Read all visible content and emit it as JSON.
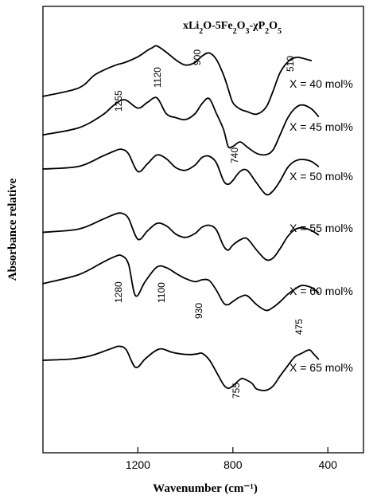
{
  "chart_data": {
    "type": "line",
    "title_parts": [
      {
        "text": "xLi",
        "sub": false
      },
      {
        "text": "2",
        "sub": true
      },
      {
        "text": "O-5Fe",
        "sub": false
      },
      {
        "text": "2",
        "sub": true
      },
      {
        "text": "O",
        "sub": false
      },
      {
        "text": "3",
        "sub": true
      },
      {
        "text": "-χP",
        "sub": false
      },
      {
        "text": "2",
        "sub": true
      },
      {
        "text": "O",
        "sub": false
      },
      {
        "text": "5",
        "sub": true
      }
    ],
    "xlabel": "Wavenumber (cm⁻¹)",
    "ylabel": "Absorbance relative",
    "xlim": [
      1600,
      250
    ],
    "x_reversed": true,
    "x_ticks": [
      1200,
      800,
      400
    ],
    "x_tick_labels": [
      "1200",
      "800",
      "400"
    ],
    "y_ticks": false,
    "grid": false,
    "series": [
      {
        "name": "X = 40 mol%",
        "points": [
          [
            1600,
            84
          ],
          [
            1450,
            97
          ],
          [
            1380,
            118
          ],
          [
            1300,
            132
          ],
          [
            1255,
            137
          ],
          [
            1200,
            146
          ],
          [
            1160,
            156
          ],
          [
            1140,
            160
          ],
          [
            1120,
            163
          ],
          [
            1080,
            153
          ],
          [
            1040,
            141
          ],
          [
            1000,
            133
          ],
          [
            960,
            137
          ],
          [
            930,
            147
          ],
          [
            900,
            152
          ],
          [
            870,
            142
          ],
          [
            840,
            118
          ],
          [
            820,
            96
          ],
          [
            800,
            74
          ],
          [
            770,
            64
          ],
          [
            740,
            60
          ],
          [
            700,
            56
          ],
          [
            660,
            67
          ],
          [
            630,
            93
          ],
          [
            600,
            122
          ],
          [
            560,
            141
          ],
          [
            530,
            145
          ],
          [
            510,
            144
          ],
          [
            470,
            140
          ]
        ]
      },
      {
        "name": "X = 45 mol%",
        "points": [
          [
            1600,
            71
          ],
          [
            1450,
            82
          ],
          [
            1350,
            102
          ],
          [
            1300,
            118
          ],
          [
            1255,
            126
          ],
          [
            1200,
            113
          ],
          [
            1160,
            122
          ],
          [
            1120,
            129
          ],
          [
            1080,
            104
          ],
          [
            1040,
            98
          ],
          [
            1000,
            95
          ],
          [
            960,
            104
          ],
          [
            930,
            120
          ],
          [
            900,
            128
          ],
          [
            870,
            105
          ],
          [
            840,
            80
          ],
          [
            820,
            53
          ],
          [
            800,
            53
          ],
          [
            770,
            60
          ],
          [
            740,
            52
          ],
          [
            700,
            42
          ],
          [
            660,
            40
          ],
          [
            630,
            48
          ],
          [
            600,
            72
          ],
          [
            570,
            97
          ],
          [
            540,
            112
          ],
          [
            510,
            118
          ],
          [
            470,
            112
          ],
          [
            440,
            100
          ]
        ]
      },
      {
        "name": "X = 50 mol%",
        "points": [
          [
            1600,
            60
          ],
          [
            1450,
            64
          ],
          [
            1350,
            80
          ],
          [
            1300,
            88
          ],
          [
            1270,
            91
          ],
          [
            1240,
            84
          ],
          [
            1200,
            56
          ],
          [
            1160,
            68
          ],
          [
            1120,
            82
          ],
          [
            1080,
            76
          ],
          [
            1040,
            62
          ],
          [
            1000,
            58
          ],
          [
            960,
            66
          ],
          [
            930,
            78
          ],
          [
            900,
            80
          ],
          [
            870,
            70
          ],
          [
            840,
            42
          ],
          [
            820,
            36
          ],
          [
            800,
            42
          ],
          [
            770,
            56
          ],
          [
            740,
            58
          ],
          [
            700,
            38
          ],
          [
            660,
            20
          ],
          [
            630,
            26
          ],
          [
            600,
            42
          ],
          [
            570,
            62
          ],
          [
            540,
            72
          ],
          [
            510,
            75
          ],
          [
            470,
            72
          ],
          [
            440,
            64
          ]
        ]
      },
      {
        "name": "X = 55 mol%",
        "points": [
          [
            1600,
            42
          ],
          [
            1450,
            47
          ],
          [
            1350,
            62
          ],
          [
            1300,
            70
          ],
          [
            1270,
            72
          ],
          [
            1240,
            64
          ],
          [
            1200,
            31
          ],
          [
            1160,
            44
          ],
          [
            1120,
            56
          ],
          [
            1080,
            52
          ],
          [
            1040,
            39
          ],
          [
            1000,
            34
          ],
          [
            960,
            40
          ],
          [
            930,
            50
          ],
          [
            900,
            53
          ],
          [
            870,
            46
          ],
          [
            840,
            21
          ],
          [
            820,
            14
          ],
          [
            800,
            22
          ],
          [
            770,
            30
          ],
          [
            740,
            32
          ],
          [
            700,
            14
          ],
          [
            660,
            -1
          ],
          [
            630,
            2
          ],
          [
            600,
            17
          ],
          [
            570,
            35
          ],
          [
            540,
            46
          ],
          [
            510,
            49
          ],
          [
            470,
            45
          ],
          [
            440,
            38
          ]
        ]
      },
      {
        "name": "X = 60 mol%",
        "points": [
          [
            1600,
            24
          ],
          [
            1450,
            38
          ],
          [
            1350,
            57
          ],
          [
            1300,
            66
          ],
          [
            1270,
            68
          ],
          [
            1240,
            55
          ],
          [
            1210,
            5
          ],
          [
            1170,
            27
          ],
          [
            1120,
            50
          ],
          [
            1080,
            49
          ],
          [
            1040,
            40
          ],
          [
            1000,
            32
          ],
          [
            960,
            27
          ],
          [
            930,
            30
          ],
          [
            900,
            29
          ],
          [
            870,
            14
          ],
          [
            840,
            -6
          ],
          [
            820,
            -9
          ],
          [
            800,
            -4
          ],
          [
            770,
            3
          ],
          [
            740,
            5
          ],
          [
            700,
            -9
          ],
          [
            660,
            -18
          ],
          [
            630,
            -13
          ],
          [
            600,
            -4
          ],
          [
            570,
            7
          ],
          [
            540,
            15
          ],
          [
            510,
            21
          ],
          [
            470,
            18
          ],
          [
            440,
            10
          ]
        ]
      },
      {
        "name": "X = 65 mol%",
        "points": [
          [
            1600,
            0
          ],
          [
            1480,
            2
          ],
          [
            1400,
            7
          ],
          [
            1330,
            16
          ],
          [
            1300,
            20
          ],
          [
            1280,
            22
          ],
          [
            1250,
            17
          ],
          [
            1210,
            -11
          ],
          [
            1170,
            2
          ],
          [
            1130,
            14
          ],
          [
            1100,
            18
          ],
          [
            1060,
            13
          ],
          [
            1020,
            10
          ],
          [
            980,
            9
          ],
          [
            950,
            10
          ],
          [
            930,
            11
          ],
          [
            900,
            1
          ],
          [
            870,
            -18
          ],
          [
            840,
            -38
          ],
          [
            820,
            -44
          ],
          [
            800,
            -40
          ],
          [
            770,
            -30
          ],
          [
            755,
            -29
          ],
          [
            720,
            -36
          ],
          [
            700,
            -45
          ],
          [
            660,
            -47
          ],
          [
            630,
            -40
          ],
          [
            600,
            -24
          ],
          [
            570,
            -9
          ],
          [
            540,
            5
          ],
          [
            510,
            11
          ],
          [
            490,
            15
          ],
          [
            475,
            16
          ],
          [
            460,
            10
          ],
          [
            440,
            2
          ]
        ]
      }
    ],
    "peak_annotations": [
      "1255",
      "1120",
      "900",
      "510",
      "740",
      "1280",
      "1100",
      "930",
      "755",
      "475"
    ]
  }
}
